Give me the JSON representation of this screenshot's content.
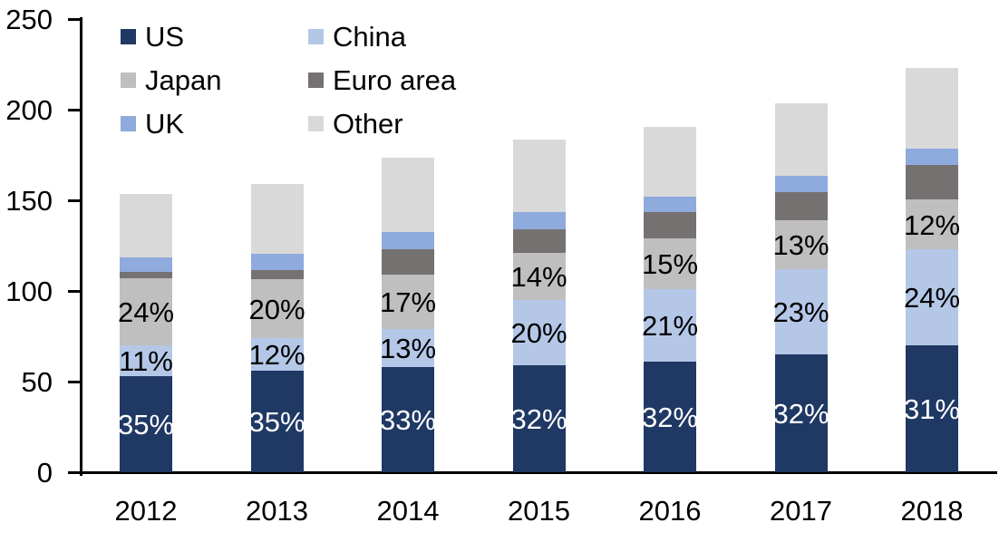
{
  "chart_data": {
    "type": "bar",
    "stacked": true,
    "title": "",
    "categories": [
      "2012",
      "2013",
      "2014",
      "2015",
      "2016",
      "2017",
      "2018"
    ],
    "series": [
      {
        "name": "US",
        "color": "#1F3864",
        "label_color": "#FFFFFF",
        "values": [
          53,
          56,
          58,
          59,
          61,
          65,
          70
        ],
        "labels": [
          "35%",
          "35%",
          "33%",
          "32%",
          "32%",
          "32%",
          "31%"
        ]
      },
      {
        "name": "China",
        "color": "#B4C7E7",
        "label_color": "#000000",
        "values": [
          17,
          18,
          21,
          36,
          40,
          47,
          53
        ],
        "labels": [
          "11%",
          "12%",
          "13%",
          "20%",
          "21%",
          "23%",
          "24%"
        ]
      },
      {
        "name": "Japan",
        "color": "#BFBFBF",
        "label_color": "#000000",
        "values": [
          37,
          32.5,
          30,
          26,
          28,
          27,
          27.5
        ],
        "labels": [
          "24%",
          "20%",
          "17%",
          "14%",
          "15%",
          "13%",
          "12%"
        ]
      },
      {
        "name": "Euro area",
        "color": "#767171",
        "label_color": "#000000",
        "values": [
          3.5,
          5,
          14,
          13,
          14.5,
          15.5,
          19
        ],
        "labels": [
          "",
          "",
          "",
          "",
          "",
          "",
          ""
        ]
      },
      {
        "name": "UK",
        "color": "#8FAADC",
        "label_color": "#000000",
        "values": [
          8,
          9,
          9.5,
          9.5,
          8.5,
          9,
          9
        ],
        "labels": [
          "",
          "",
          "",
          "",
          "",
          "",
          ""
        ]
      },
      {
        "name": "Other",
        "color": "#D9D9D9",
        "label_color": "#000000",
        "values": [
          35,
          38.5,
          41,
          40,
          38.5,
          40,
          44.5
        ],
        "labels": [
          "",
          "",
          "",
          "",
          "",
          "",
          ""
        ]
      }
    ],
    "stack_order_bottom_to_top": [
      "US",
      "China",
      "Japan",
      "Euro area",
      "UK",
      "Other"
    ],
    "totals": [
      153.5,
      159,
      173.5,
      183.5,
      190.5,
      203.5,
      223
    ],
    "xlabel": "",
    "ylabel": "",
    "ylim": [
      0,
      250
    ],
    "y_ticks": [
      "0",
      "50",
      "100",
      "150",
      "200",
      "250"
    ],
    "grid": false,
    "legend": {
      "position": "top-left-inside",
      "columns": 2,
      "items": [
        "US",
        "China",
        "Japan",
        "Euro area",
        "UK",
        "Other"
      ]
    },
    "axis_color": "#000000",
    "text_color": "#000000"
  }
}
